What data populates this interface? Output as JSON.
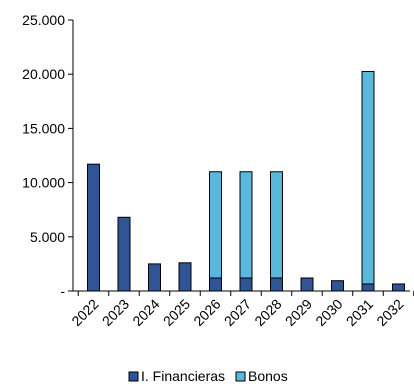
{
  "chart_data": {
    "type": "bar",
    "stacked": true,
    "categories": [
      "2022",
      "2023",
      "2024",
      "2025",
      "2026",
      "2027",
      "2028",
      "2029",
      "2030",
      "2031",
      "2032"
    ],
    "series": [
      {
        "name": "I. Financieras",
        "color": "#2f5597",
        "values": [
          11700,
          6800,
          2500,
          2600,
          1200,
          1200,
          1200,
          1200,
          950,
          650,
          650
        ]
      },
      {
        "name": "Bonos",
        "color": "#5bb8dd",
        "values": [
          0,
          0,
          0,
          0,
          9800,
          9800,
          9800,
          0,
          0,
          19600,
          0
        ]
      }
    ],
    "ylim": [
      0,
      25000
    ],
    "yticks": [
      0,
      5000,
      10000,
      15000,
      20000,
      25000
    ],
    "ytick_labels": [
      "-",
      "5.000",
      "10.000",
      "15.000",
      "20.000",
      "25.000"
    ],
    "grid": false,
    "legend_position": "bottom",
    "title": "",
    "xlabel": "",
    "ylabel": ""
  }
}
